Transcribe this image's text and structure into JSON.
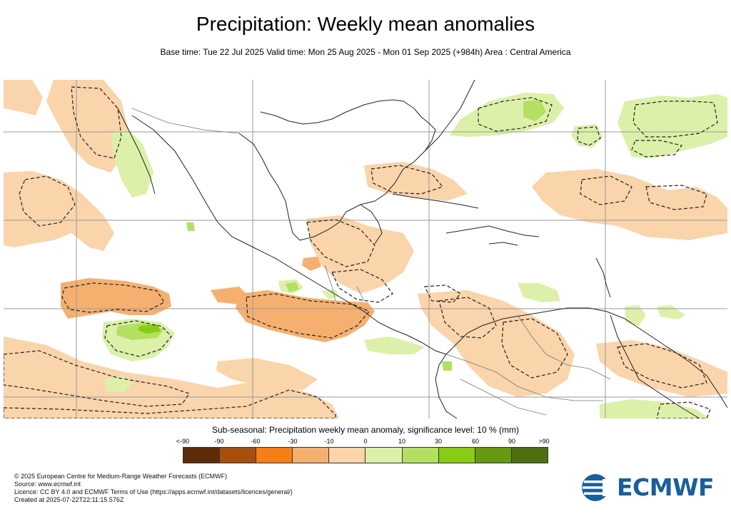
{
  "header": {
    "title": "Precipitation: Weekly mean anomalies",
    "subtitle": "Base time: Tue 22 Jul 2025 Valid time: Mon 25 Aug 2025 - Mon 01 Sep 2025 (+984h) Area : Central America"
  },
  "legend": {
    "title": "Sub-seasonal: Precipitation weekly mean anomaly, significance level: 10 % (mm)",
    "ticks": [
      "<-90",
      "-90",
      "-60",
      "-30",
      "-10",
      "0",
      "10",
      "30",
      "60",
      "90",
      ">90"
    ],
    "colors": [
      "#5c2d08",
      "#a84f0d",
      "#f57f14",
      "#f5b070",
      "#fad4aa",
      "#dcf0aa",
      "#b4e062",
      "#88cc14",
      "#669910",
      "#4f6e10"
    ]
  },
  "footer": {
    "copyright": "© 2025 European Centre for Medium-Range Weather Forecasts (ECMWF)",
    "source": "Source: www.ecmwf.int",
    "licence": "Licence: CC BY 4.0 and ECMWF Terms of Use (https://apps.ecmwf.int/datasets/licences/general/)",
    "created": "Created at 2025-07-22T22:11:15.576Z"
  },
  "logo": {
    "text": "ECMWF",
    "color": "#1a5e9a"
  },
  "map": {
    "area": "Central America",
    "anomaly_colors": {
      "light_dry": "#fad4aa",
      "moderate_dry": "#f5b070",
      "light_wet": "#dcf0aa",
      "moderate_wet": "#b4e062"
    }
  }
}
